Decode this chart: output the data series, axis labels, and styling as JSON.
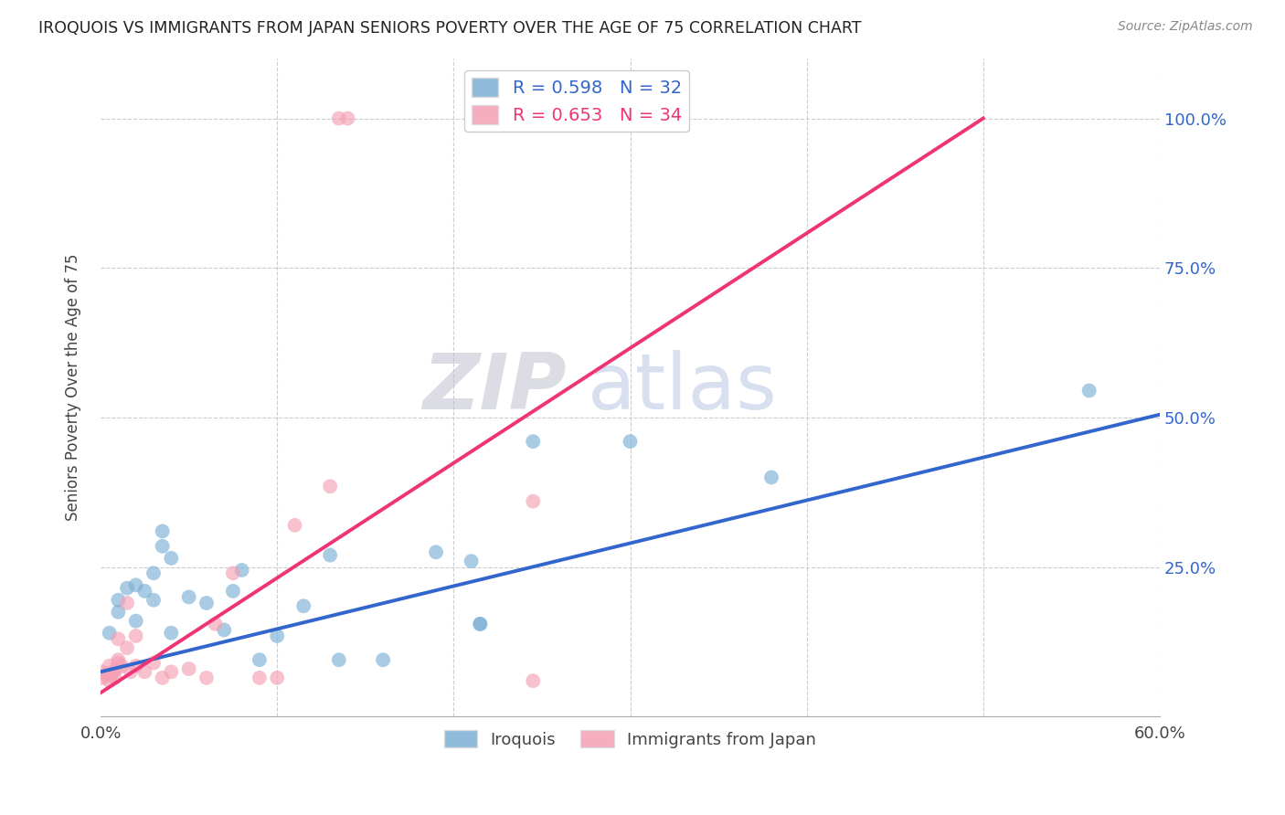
{
  "title": "IROQUOIS VS IMMIGRANTS FROM JAPAN SENIORS POVERTY OVER THE AGE OF 75 CORRELATION CHART",
  "source": "Source: ZipAtlas.com",
  "ylabel": "Seniors Poverty Over the Age of 75",
  "xlim": [
    0.0,
    0.6
  ],
  "ylim": [
    0.0,
    1.1
  ],
  "xticks": [
    0.0,
    0.1,
    0.2,
    0.3,
    0.4,
    0.5,
    0.6
  ],
  "xticklabels": [
    "0.0%",
    "",
    "",
    "",
    "",
    "",
    "60.0%"
  ],
  "ytick_positions": [
    0.0,
    0.25,
    0.5,
    0.75,
    1.0
  ],
  "ytick_labels": [
    "",
    "25.0%",
    "50.0%",
    "75.0%",
    "100.0%"
  ],
  "blue_R": 0.598,
  "blue_N": 32,
  "pink_R": 0.653,
  "pink_N": 34,
  "blue_color": "#7BAFD4",
  "pink_color": "#F4A0B5",
  "blue_line_color": "#3366CC",
  "pink_line_color": "#EE3377",
  "watermark_zip": "ZIP",
  "watermark_atlas": "atlas",
  "legend_label_blue": "Iroquois",
  "legend_label_pink": "Immigrants from Japan",
  "blue_scatter_x": [
    0.005,
    0.01,
    0.01,
    0.015,
    0.02,
    0.02,
    0.025,
    0.03,
    0.03,
    0.035,
    0.035,
    0.04,
    0.04,
    0.05,
    0.06,
    0.07,
    0.075,
    0.08,
    0.09,
    0.1,
    0.115,
    0.13,
    0.135,
    0.16,
    0.19,
    0.21,
    0.215,
    0.215,
    0.245,
    0.3,
    0.38,
    0.56
  ],
  "blue_scatter_y": [
    0.14,
    0.175,
    0.195,
    0.215,
    0.16,
    0.22,
    0.21,
    0.195,
    0.24,
    0.285,
    0.31,
    0.14,
    0.265,
    0.2,
    0.19,
    0.145,
    0.21,
    0.245,
    0.095,
    0.135,
    0.185,
    0.27,
    0.095,
    0.095,
    0.275,
    0.26,
    0.155,
    0.155,
    0.46,
    0.46,
    0.4,
    0.545
  ],
  "pink_scatter_x": [
    0.001,
    0.001,
    0.003,
    0.005,
    0.005,
    0.006,
    0.007,
    0.008,
    0.009,
    0.01,
    0.01,
    0.01,
    0.012,
    0.015,
    0.015,
    0.017,
    0.02,
    0.02,
    0.025,
    0.03,
    0.035,
    0.04,
    0.05,
    0.06,
    0.065,
    0.075,
    0.09,
    0.1,
    0.11,
    0.13,
    0.135,
    0.14,
    0.245,
    0.245
  ],
  "pink_scatter_y": [
    0.075,
    0.065,
    0.07,
    0.06,
    0.085,
    0.07,
    0.075,
    0.065,
    0.08,
    0.09,
    0.095,
    0.13,
    0.085,
    0.115,
    0.19,
    0.075,
    0.085,
    0.135,
    0.075,
    0.09,
    0.065,
    0.075,
    0.08,
    0.065,
    0.155,
    0.24,
    0.065,
    0.065,
    0.32,
    0.385,
    1.0,
    1.0,
    0.36,
    0.06
  ],
  "blue_line_x": [
    0.0,
    0.6
  ],
  "blue_line_y": [
    0.075,
    0.505
  ],
  "pink_line_x": [
    0.0,
    0.5
  ],
  "pink_line_y": [
    0.04,
    1.0
  ],
  "grid_color": "#CCCCCC",
  "bg_color": "#FFFFFF"
}
